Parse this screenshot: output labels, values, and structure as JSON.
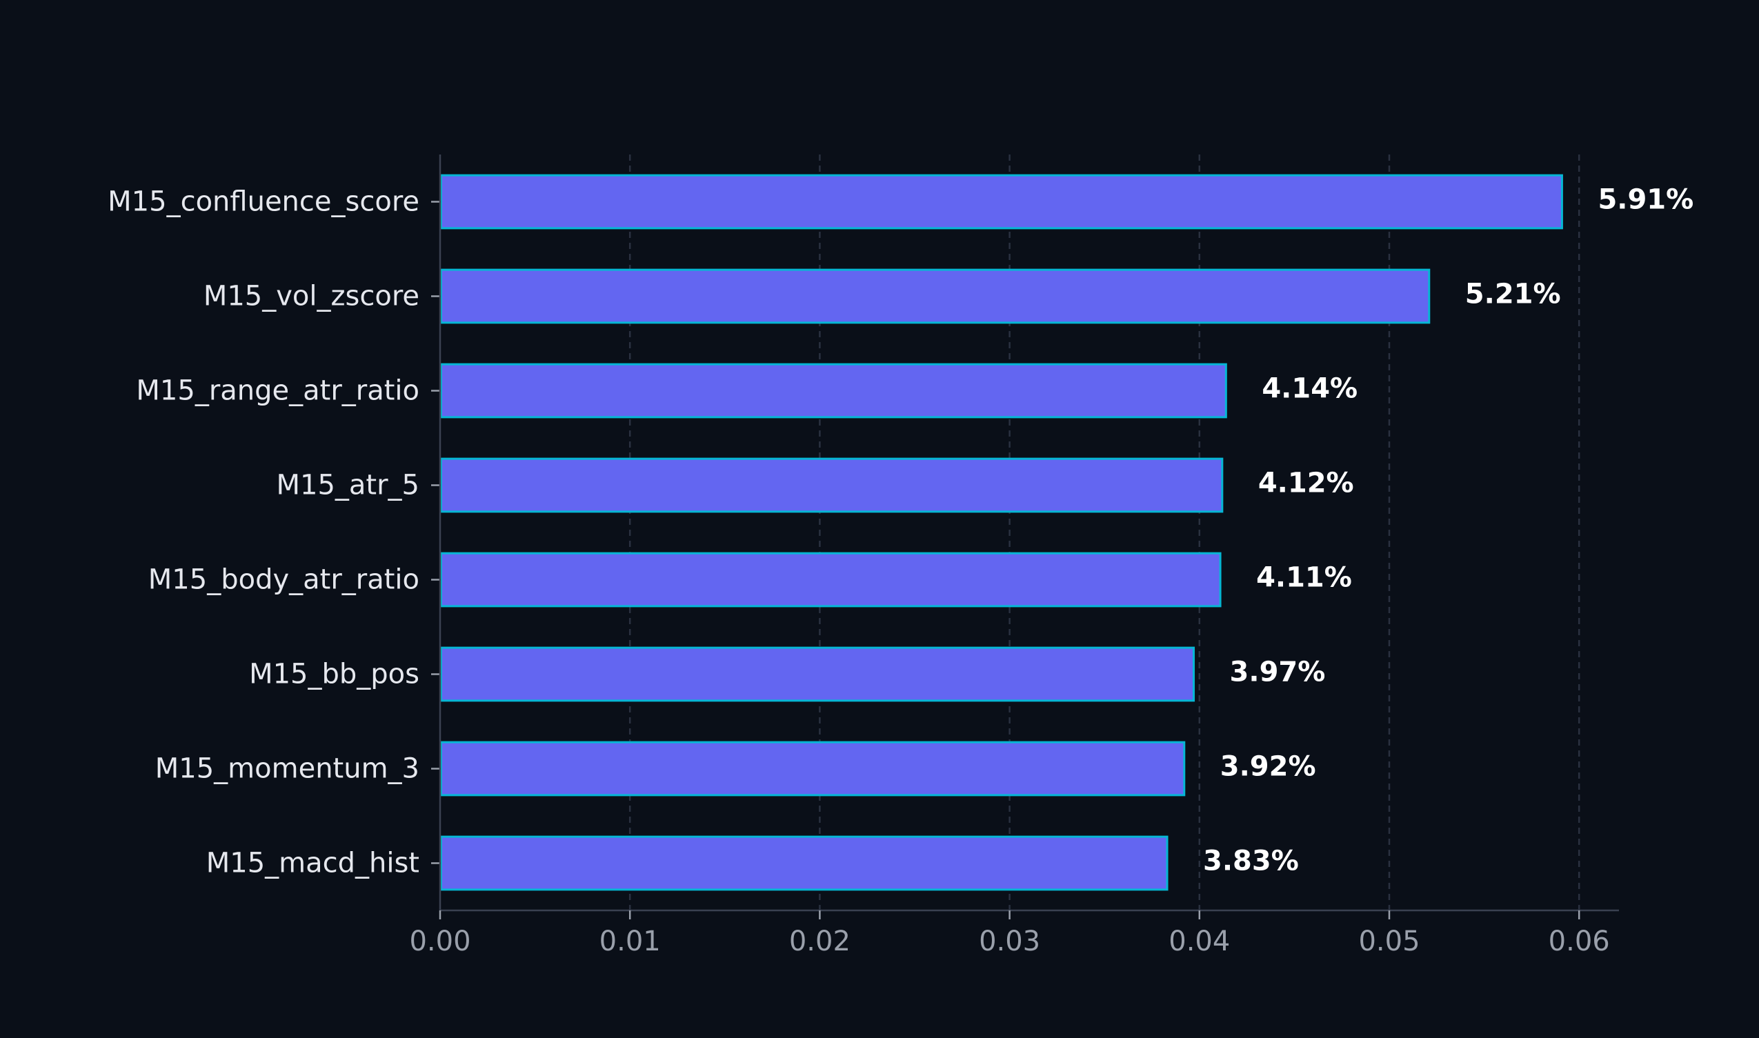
{
  "chart_data": {
    "type": "bar",
    "orientation": "horizontal",
    "categories": [
      "M15_confluence_score",
      "M15_vol_zscore",
      "M15_range_atr_ratio",
      "M15_atr_5",
      "M15_body_atr_ratio",
      "M15_bb_pos",
      "M15_momentum_3",
      "M15_macd_hist"
    ],
    "values": [
      0.0591,
      0.0521,
      0.0414,
      0.0412,
      0.0411,
      0.0397,
      0.0392,
      0.0383
    ],
    "value_labels": [
      "5.91%",
      "5.21%",
      "4.14%",
      "4.12%",
      "4.11%",
      "3.97%",
      "3.92%",
      "3.83%"
    ],
    "x_ticks": [
      0.0,
      0.01,
      0.02,
      0.03,
      0.04,
      0.05,
      0.06
    ],
    "x_tick_labels": [
      "0.00",
      "0.01",
      "0.02",
      "0.03",
      "0.04",
      "0.05",
      "0.06"
    ],
    "xlim": [
      0,
      0.0621
    ],
    "grid": "vertical-dashed",
    "legend": "none",
    "title": "",
    "xlabel": "",
    "ylabel": "",
    "colors": {
      "background": "#0a0f18",
      "bar_fill": "#6366f1",
      "bar_edge": "#06b6d4",
      "grid": "#2a3140",
      "axis": "#3a4150",
      "category_text": "#e6e8ee",
      "tick_text": "#9aa0ab",
      "value_text": "#ffffff"
    }
  }
}
